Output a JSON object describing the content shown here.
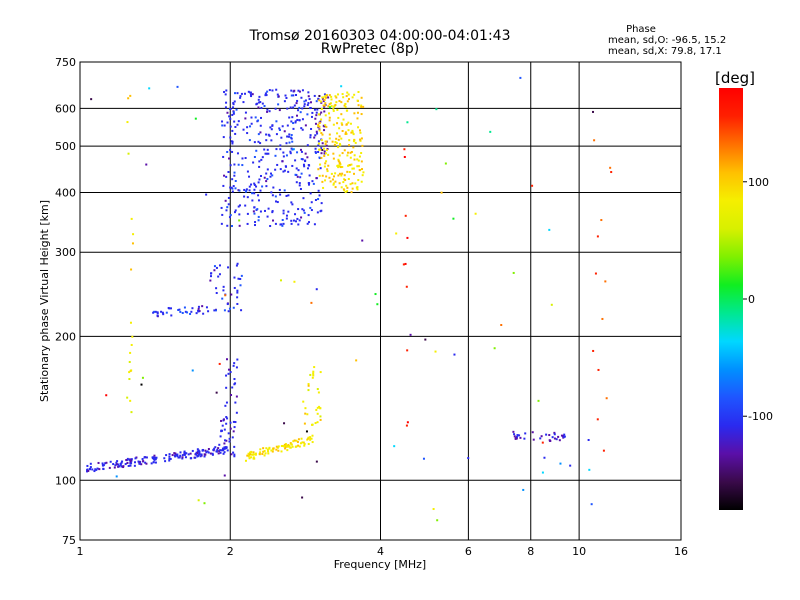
{
  "chart_data": {
    "type": "scatter",
    "title": "Tromsø 20160303 04:00:00-04:01:43",
    "subtitle": "RwPretec (8p)",
    "xlabel": "Frequency [MHz]",
    "ylabel": "Stationary phase Virtual Height [km]",
    "x_scale": "log",
    "y_scale": "log",
    "xlim": [
      1,
      16
    ],
    "ylim": [
      75,
      750
    ],
    "x_ticks": [
      "1",
      "2",
      "4",
      "6",
      "8",
      "10",
      "16"
    ],
    "y_ticks": [
      "75",
      "100",
      "200",
      "300",
      "400",
      "500",
      "600",
      "750"
    ],
    "grid": true,
    "phase_legend": {
      "title": "Phase",
      "line1": "mean, sd,O: -96.5, 15.2",
      "line2": "mean, sd,X:  79.8, 17.1"
    },
    "colorbar": {
      "label": "[deg]",
      "ticks": [
        "100",
        "0",
        "-100"
      ],
      "range": [
        -180,
        180
      ]
    },
    "colormap": [
      "#000000",
      "#3a0a4a",
      "#5a0fa8",
      "#2a2aef",
      "#1f55ff",
      "#0090ff",
      "#00d8ff",
      "#00e890",
      "#10ee20",
      "#80f000",
      "#d8f000",
      "#f5ef00",
      "#ffc000",
      "#ff7000",
      "#ff2000",
      "#ff0000"
    ],
    "clusters": [
      {
        "name": "E trace",
        "xmin": 1.03,
        "xmax": 1.97,
        "ymin": 107,
        "ymax": 120,
        "count": 190,
        "phase": -105,
        "shape": "trend",
        "y_start": 106,
        "y_end": 116
      },
      {
        "name": "E trace hook",
        "xmin": 1.9,
        "xmax": 2.05,
        "ymin": 112,
        "ymax": 135,
        "count": 30,
        "phase": -110
      },
      {
        "name": "Es spread",
        "xmin": 1.93,
        "xmax": 2.08,
        "ymin": 130,
        "ymax": 190,
        "count": 25,
        "phase": -105
      },
      {
        "name": "E X trace",
        "xmin": 2.15,
        "xmax": 2.95,
        "ymin": 112,
        "ymax": 128,
        "count": 90,
        "phase": 85,
        "shape": "trend",
        "y_start": 112,
        "y_end": 122
      },
      {
        "name": "E X spread",
        "xmin": 2.8,
        "xmax": 3.05,
        "ymin": 120,
        "ymax": 175,
        "count": 30,
        "phase": 80
      },
      {
        "name": "F1 trace",
        "xmin": 1.4,
        "xmax": 1.82,
        "ymin": 222,
        "ymax": 230,
        "count": 35,
        "phase": -100,
        "shape": "trend",
        "y_start": 224,
        "y_end": 228
      },
      {
        "name": "F1 cusp",
        "xmin": 1.82,
        "xmax": 2.12,
        "ymin": 225,
        "ymax": 285,
        "count": 40,
        "phase": -100
      },
      {
        "name": "F2 O cloud",
        "xmin": 1.92,
        "xmax": 3.05,
        "ymin": 340,
        "ymax": 660,
        "count": 420,
        "phase": -100
      },
      {
        "name": "F2 O cloud purple",
        "xmin": 2.95,
        "xmax": 3.15,
        "ymin": 480,
        "ymax": 650,
        "count": 30,
        "phase": -125
      },
      {
        "name": "F2 X cloud",
        "xmin": 3.0,
        "xmax": 3.7,
        "ymin": 400,
        "ymax": 650,
        "count": 230,
        "phase": 88
      },
      {
        "name": "high frequency trace",
        "xmin": 7.2,
        "xmax": 9.4,
        "ymin": 122,
        "ymax": 127,
        "count": 35,
        "phase": -115,
        "shape": "trend",
        "y_start": 124,
        "y_end": 123
      },
      {
        "name": "noise column 1",
        "xmin": 1.24,
        "xmax": 1.28,
        "ymin": 110,
        "ymax": 640,
        "count": 20,
        "phase": 80
      },
      {
        "name": "noise column 2",
        "xmin": 4.45,
        "xmax": 4.55,
        "ymin": 120,
        "ymax": 580,
        "count": 10,
        "phase": 150
      },
      {
        "name": "noise column 3",
        "xmin": 10.6,
        "xmax": 11.6,
        "ymin": 110,
        "ymax": 610,
        "count": 12,
        "phase": 130
      },
      {
        "name": "scattered noise",
        "xmin": 1.05,
        "xmax": 12.0,
        "ymin": 78,
        "ymax": 700,
        "count": 70,
        "phase": 0
      }
    ]
  }
}
